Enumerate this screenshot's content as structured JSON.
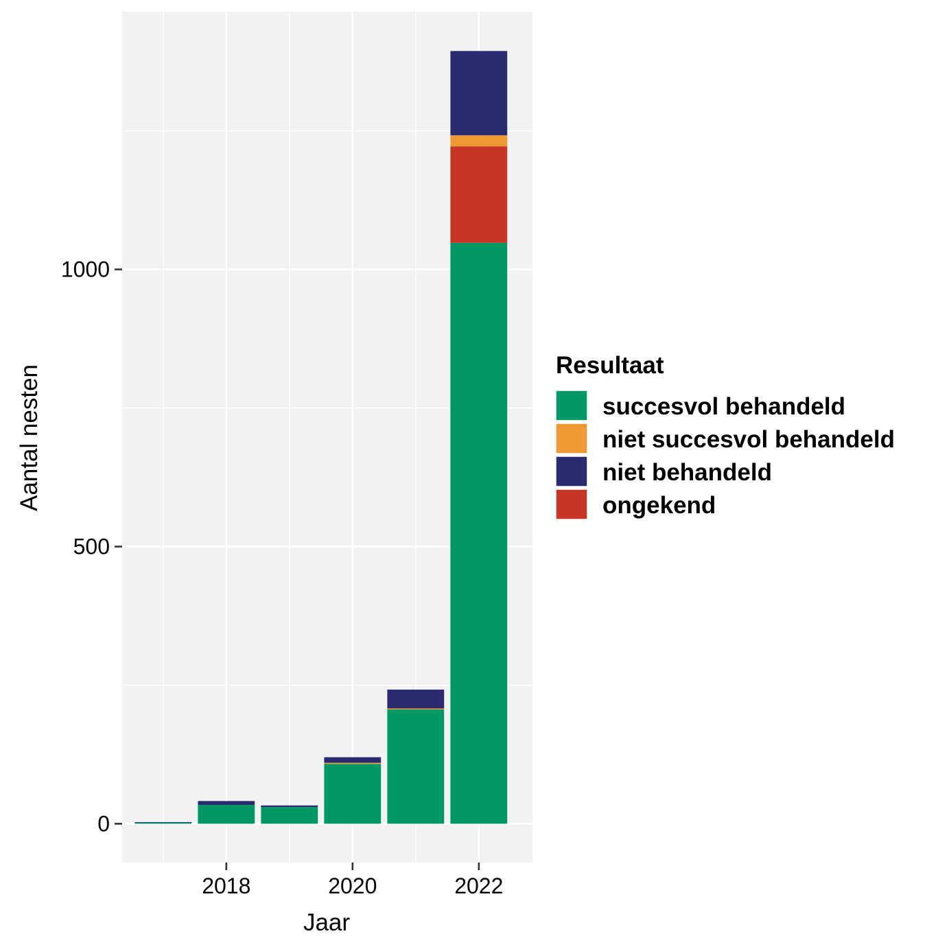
{
  "chart_data": {
    "type": "bar",
    "stacked": true,
    "x": [
      2017,
      2018,
      2019,
      2020,
      2021,
      2022
    ],
    "x_ticks": [
      2018,
      2020,
      2022
    ],
    "x_tick_labels": [
      "2018",
      "2020",
      "2022"
    ],
    "y_ticks": [
      0,
      500,
      1000
    ],
    "y_tick_labels": [
      "0",
      "500",
      "1000"
    ],
    "xlim": [
      2016.35,
      2022.85
    ],
    "ylim": [
      -70,
      1465
    ],
    "xlabel": "Jaar",
    "ylabel": "Aantal nesten",
    "grid": true,
    "legend": {
      "title": "Resultaat",
      "placement": "right",
      "entries": [
        "succesvol behandeld",
        "niet succesvol behandeld",
        "niet behandeld",
        "ongekend"
      ]
    },
    "series": [
      {
        "name": "succesvol behandeld",
        "color": "#009966",
        "values": [
          2,
          34,
          30,
          108,
          206,
          1048
        ]
      },
      {
        "name": "ongekend",
        "color": "#C73526",
        "values": [
          0,
          0,
          0,
          0,
          0,
          174
        ]
      },
      {
        "name": "niet succesvol behandeld",
        "color": "#EE9933",
        "values": [
          0,
          0,
          0,
          2,
          2,
          20
        ]
      },
      {
        "name": "niet behandeld",
        "color": "#292A6F",
        "values": [
          1,
          7,
          3,
          10,
          34,
          152
        ]
      }
    ]
  }
}
